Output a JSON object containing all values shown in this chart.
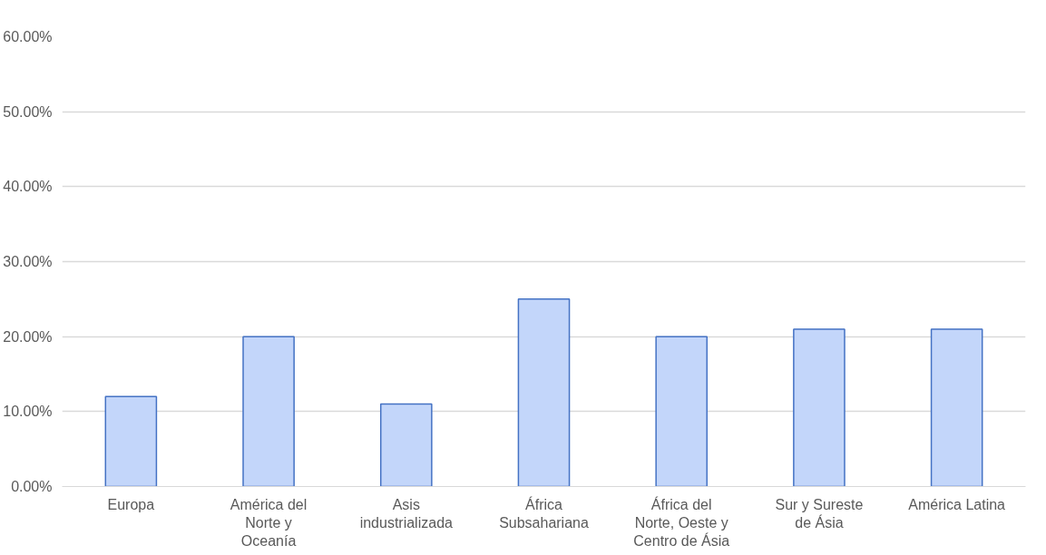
{
  "chart_data": {
    "type": "bar",
    "categories": [
      "Europa",
      "América del Norte y Oceanía",
      "Asis industrializada",
      "África Subsahariana",
      "África del Norte, Oeste y Centro de Ásia",
      "Sur y Sureste de Ásia",
      "América Latina"
    ],
    "values": [
      12,
      20,
      11,
      25,
      20,
      21,
      21
    ],
    "color": "#c3d6fa",
    "ylim": [
      0,
      60
    ],
    "yticks": [
      {
        "value": 0,
        "label": "0.00%"
      },
      {
        "value": 10,
        "label": "10.00%"
      },
      {
        "value": 20,
        "label": "20.00%"
      },
      {
        "value": 30,
        "label": "30.00%"
      },
      {
        "value": 40,
        "label": "40.00%"
      },
      {
        "value": 50,
        "label": "50.00%"
      },
      {
        "value": 60,
        "label": "60.00%"
      }
    ],
    "grid": "y"
  }
}
